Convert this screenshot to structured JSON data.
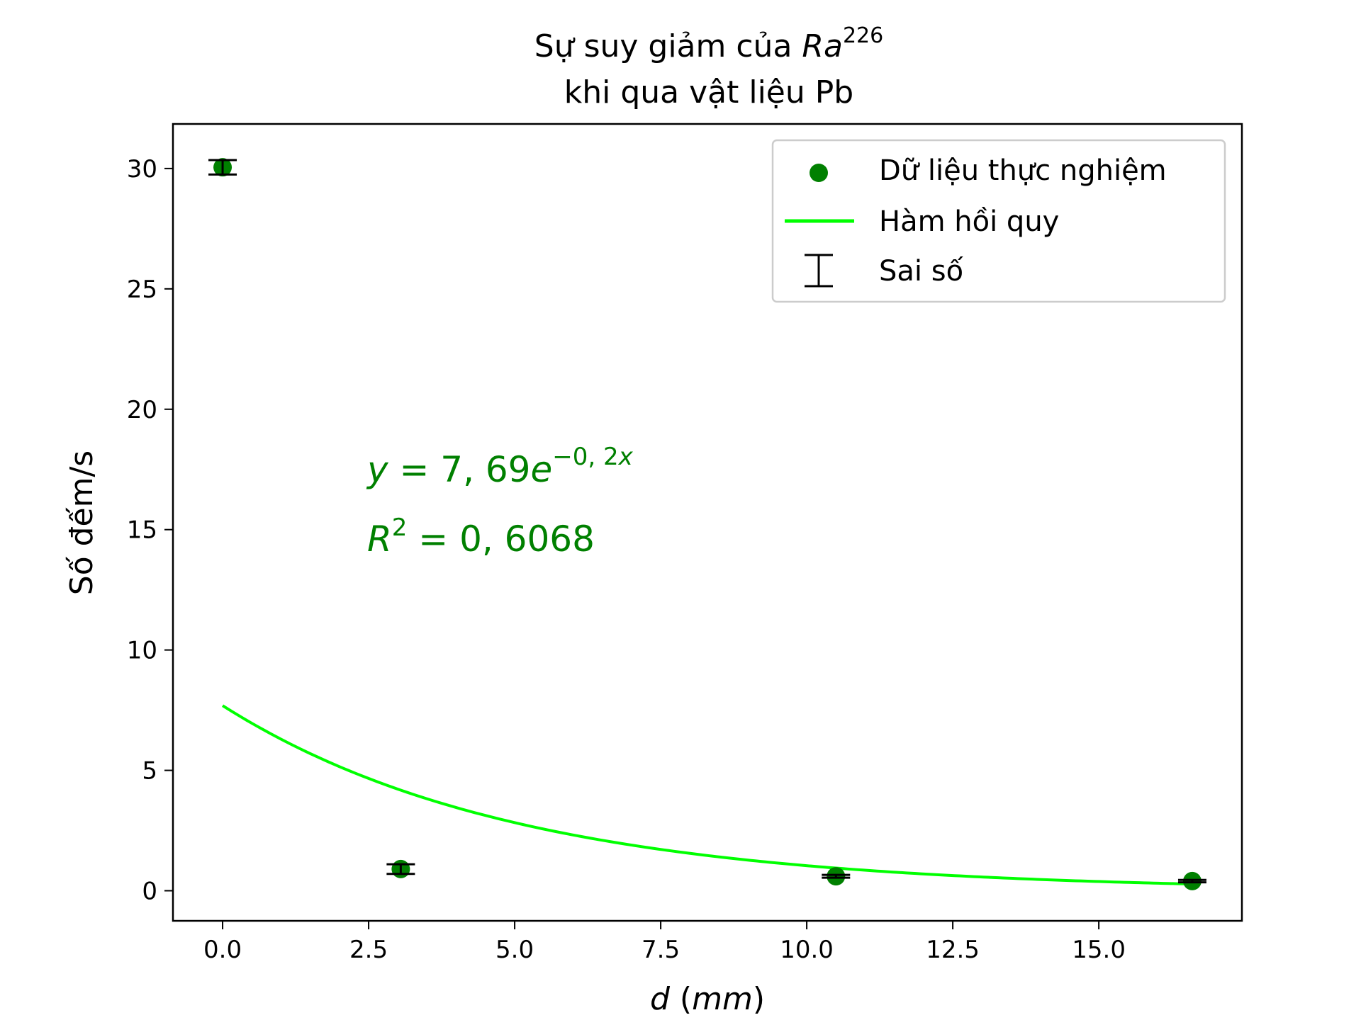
{
  "chart_data": {
    "type": "scatter",
    "title": {
      "line1_text": "Sự suy giảm của ",
      "line1_italic": "Ra",
      "line1_sup": "226",
      "line2": "khi qua vật liệu Pb"
    },
    "xlabel": {
      "italic_part": "d",
      "plain_part": " (",
      "unit_italic": "mm",
      "close": ")"
    },
    "ylabel": "Số đếm/s",
    "xlim": [
      -0.85,
      17.45
    ],
    "ylim": [
      -1.25,
      31.85
    ],
    "xticks": [
      0.0,
      2.5,
      5.0,
      7.5,
      10.0,
      12.5,
      15.0
    ],
    "xtick_labels": [
      "0.0",
      "2.5",
      "5.0",
      "7.5",
      "10.0",
      "12.5",
      "15.0"
    ],
    "yticks": [
      0,
      5,
      10,
      15,
      20,
      25,
      30
    ],
    "ytick_labels": [
      "0",
      "5",
      "10",
      "15",
      "20",
      "25",
      "30"
    ],
    "grid": false,
    "legend_position": "top-right",
    "series": [
      {
        "name": "Dữ liệu thực nghiệm",
        "kind": "scatter",
        "color": "#008000",
        "x": [
          0.0,
          3.05,
          10.5,
          16.6
        ],
        "y": [
          30.05,
          0.9,
          0.6,
          0.4
        ]
      },
      {
        "name": "Hàm hồi quy",
        "kind": "line",
        "color": "#00ff00",
        "model": {
          "a": 7.69,
          "b": -0.2
        },
        "x_range": [
          0.0,
          16.6
        ]
      },
      {
        "name": "Sai số",
        "kind": "errorbar",
        "color": "#000000",
        "x": [
          0.0,
          3.05,
          10.5,
          16.6
        ],
        "y": [
          30.05,
          0.9,
          0.6,
          0.4
        ],
        "yerr": [
          0.3,
          0.2,
          0.06,
          0.05
        ]
      }
    ],
    "annotations": {
      "color": "#008000",
      "equation": {
        "y": "y",
        "eq": " = 7, 69",
        "e": "e",
        "exp": "−0, 2",
        "expx": "x"
      },
      "r2": {
        "r": "R",
        "sup": "2",
        "eq": " = 0, 6068"
      }
    }
  }
}
